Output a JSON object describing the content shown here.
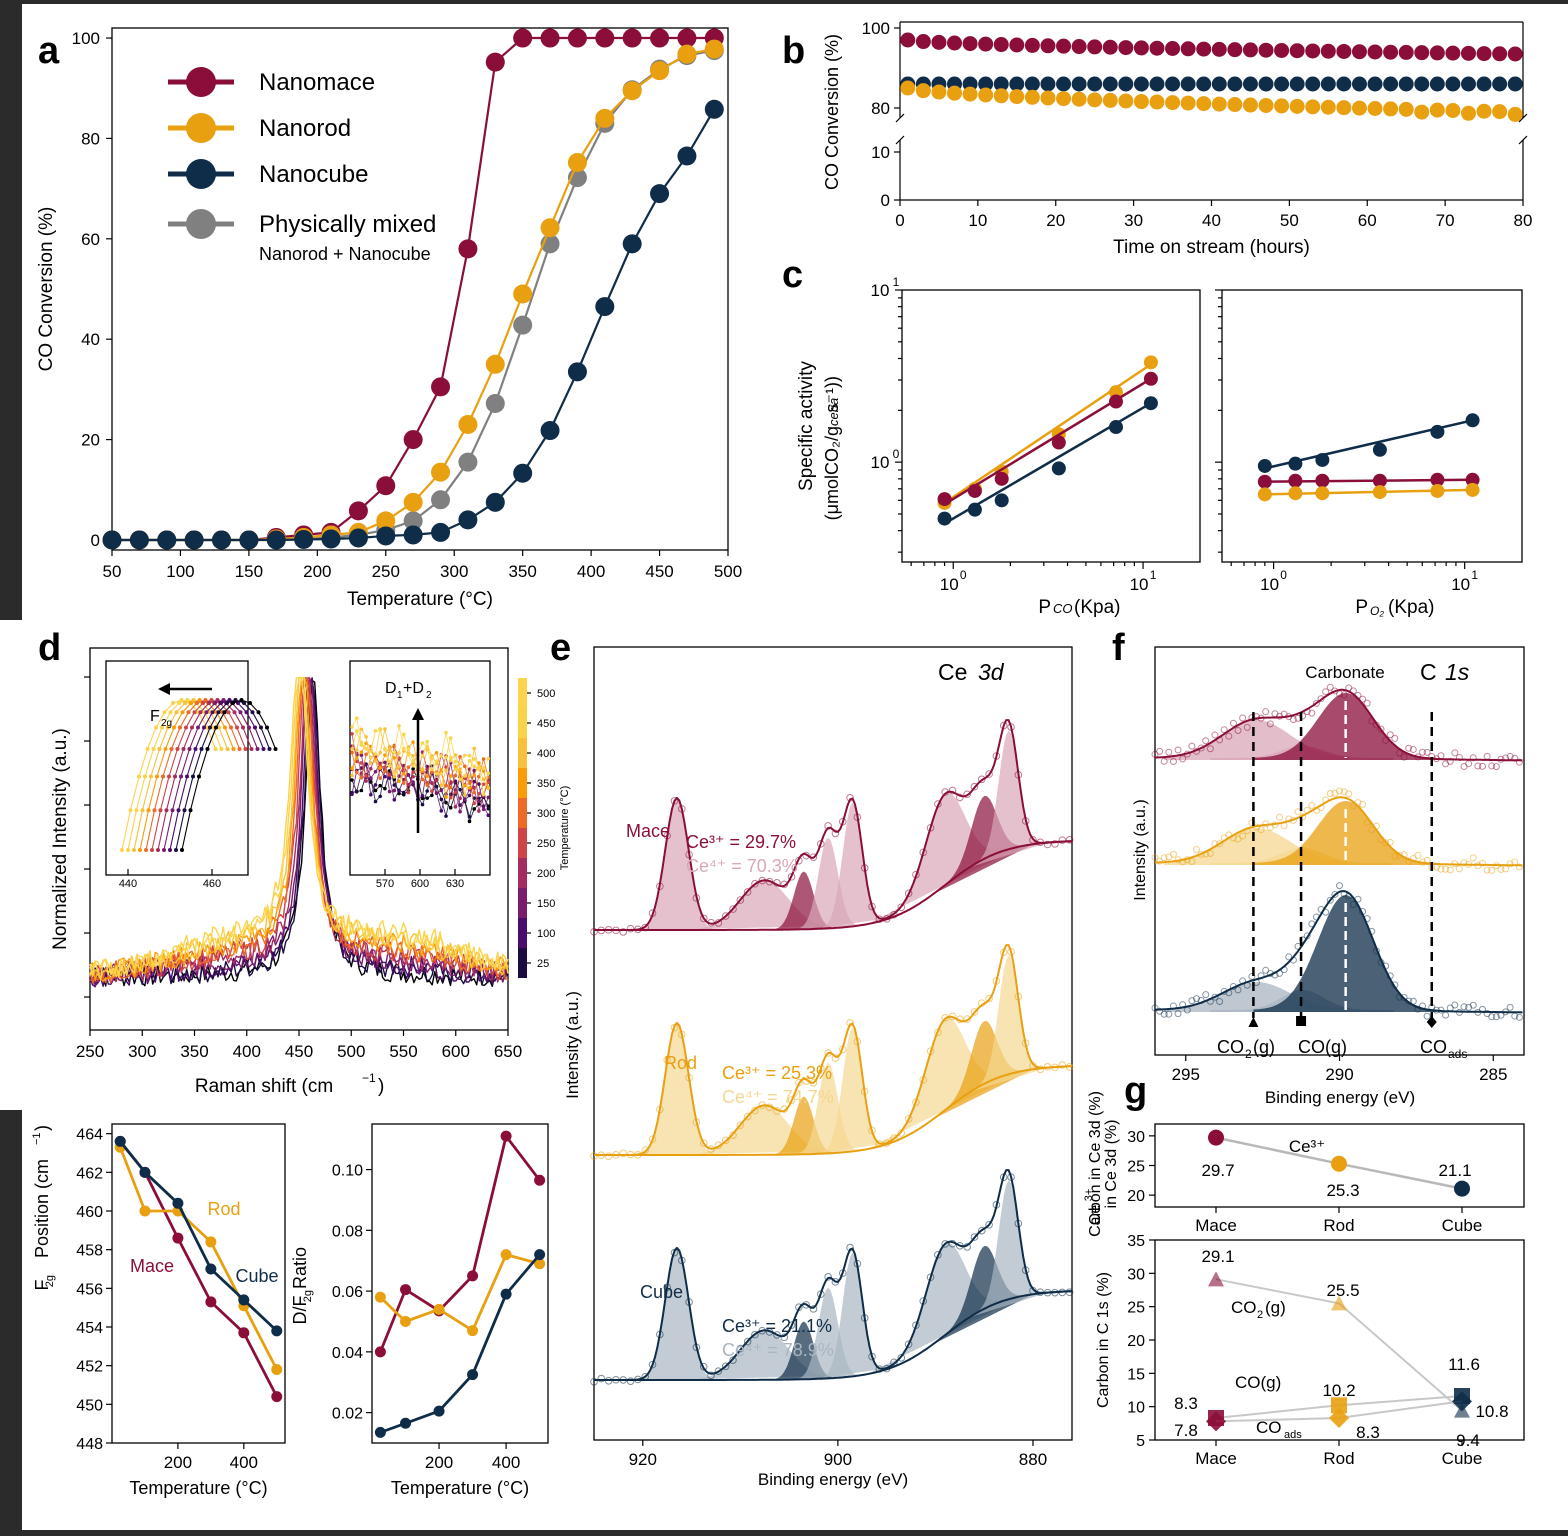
{
  "colors": {
    "mace": "#8b0e3a",
    "rod": "#e8a010",
    "cube": "#0f2d48",
    "mixed": "#808080",
    "mace_light": "#d9a7b8",
    "rod_light": "#f5d792",
    "cube_light": "#a9b6c2"
  },
  "panel_labels": [
    "a",
    "b",
    "c",
    "d",
    "e",
    "f",
    "g"
  ],
  "chart_data": [
    {
      "id": "a",
      "type": "line",
      "xlabel": "Temperature (°C)",
      "ylabel": "CO Conversion (%)",
      "xlim": [
        50,
        500
      ],
      "ylim": [
        -2,
        102
      ],
      "xticks": [
        "50",
        "100",
        "150",
        "200",
        "250",
        "300",
        "350",
        "400",
        "450",
        "500"
      ],
      "yticks": [
        "0",
        "20",
        "40",
        "60",
        "80",
        "100"
      ],
      "legend": {
        "items": [
          "Nanomace",
          "Nanorod",
          "Nanocube",
          "Physically mixed"
        ],
        "sub": "Nanorod + Nanocube"
      },
      "x": [
        50,
        70,
        90,
        110,
        130,
        150,
        170,
        190,
        210,
        230,
        250,
        270,
        290,
        310,
        330,
        350,
        370,
        390,
        410,
        430,
        450,
        470,
        490
      ],
      "series": [
        {
          "name": "Nanomace",
          "key": "mace",
          "values": [
            0,
            0,
            0,
            0,
            0,
            0,
            0.5,
            1,
            1.5,
            5.8,
            10.8,
            20,
            30.5,
            58,
            95.2,
            100,
            100,
            100,
            100,
            100,
            100,
            100,
            100
          ]
        },
        {
          "name": "Physically mixed",
          "key": "mixed",
          "values": [
            0,
            0,
            0,
            0,
            0,
            0,
            0.1,
            0.2,
            0.5,
            1,
            2,
            3.8,
            8,
            15.5,
            27.2,
            42.8,
            59,
            72.2,
            83,
            89.7,
            93.8,
            96.5,
            97.5
          ]
        },
        {
          "name": "Nanorod",
          "key": "rod",
          "values": [
            0,
            0,
            0,
            0,
            0,
            0,
            0.2,
            0.5,
            1,
            1.5,
            3.8,
            7.5,
            13.5,
            23,
            35,
            49,
            62.2,
            75.2,
            84,
            89.5,
            93.5,
            96.8,
            97.8
          ]
        },
        {
          "name": "Nanocube",
          "key": "cube",
          "values": [
            0,
            0,
            0,
            0,
            0,
            0,
            0,
            0.1,
            0.2,
            0.4,
            0.8,
            1,
            1.5,
            4,
            7.5,
            13.3,
            21.8,
            33.5,
            46.5,
            59,
            69,
            76.5,
            85.8
          ]
        }
      ]
    },
    {
      "id": "b",
      "type": "scatter",
      "xlabel": "Time on stream (hours)",
      "ylabel": "CO Conversion (%)",
      "xlim": [
        0,
        80
      ],
      "xticks": [
        "0",
        "10",
        "20",
        "30",
        "40",
        "50",
        "60",
        "70",
        "80"
      ],
      "yticks_top": [
        "80",
        "100"
      ],
      "yticks_bottom": [
        "0",
        "10"
      ],
      "series": [
        {
          "name": "Mace",
          "key": "mace",
          "start": 97,
          "end": 93.5
        },
        {
          "name": "Cube",
          "key": "cube",
          "start": 86,
          "end": 86
        },
        {
          "name": "Rod",
          "key": "rod",
          "start": 85,
          "end": 79
        }
      ]
    },
    {
      "id": "c1",
      "type": "scatter",
      "xlabel": "P_CO (Kpa)",
      "ylabel": "Specific activity (μmolCO2/gceria s−1)",
      "scale": "log",
      "xticks": [
        "10",
        "10"
      ],
      "yticks": [
        "10",
        "10"
      ],
      "x": [
        0.9,
        1.3,
        1.8,
        3.6,
        7.2,
        11
      ],
      "series": [
        {
          "key": "rod",
          "values": [
            0.58,
            0.7,
            0.88,
            1.45,
            2.55,
            3.8
          ],
          "fit": [
            0.58,
            3.7
          ]
        },
        {
          "key": "mace",
          "values": [
            0.61,
            0.68,
            0.8,
            1.3,
            2.25,
            3.05
          ],
          "fit": [
            0.57,
            3.05
          ]
        },
        {
          "key": "cube",
          "values": [
            0.47,
            0.53,
            0.6,
            0.92,
            1.6,
            2.2
          ],
          "fit": [
            0.44,
            2.2
          ]
        }
      ]
    },
    {
      "id": "c2",
      "type": "scatter",
      "xlabel": "P_O2 (Kpa)",
      "scale": "log",
      "x": [
        0.9,
        1.3,
        1.8,
        3.6,
        7.2,
        11
      ],
      "series": [
        {
          "key": "cube",
          "values": [
            0.95,
            0.98,
            1.03,
            1.18,
            1.5,
            1.75
          ],
          "fit": [
            0.92,
            1.75
          ]
        },
        {
          "key": "mace",
          "values": [
            0.77,
            0.78,
            0.78,
            0.78,
            0.79,
            0.79
          ],
          "fit": [
            0.77,
            0.79
          ]
        },
        {
          "key": "rod",
          "values": [
            0.65,
            0.66,
            0.66,
            0.67,
            0.68,
            0.69
          ],
          "fit": [
            0.65,
            0.69
          ]
        }
      ]
    },
    {
      "id": "d",
      "type": "line",
      "xlabel": "Raman shift (cm−1)",
      "ylabel": "Normalized Intensity (a.u.)",
      "xlim": [
        250,
        650
      ],
      "xticks": [
        "250",
        "300",
        "350",
        "400",
        "450",
        "500",
        "550",
        "600",
        "650"
      ],
      "inset1": {
        "label": "F2g",
        "xticks": [
          "440",
          "460"
        ]
      },
      "inset2": {
        "label": "D1+D2",
        "xticks": [
          "570",
          "600",
          "630"
        ]
      },
      "colorbar": {
        "label": "Temperature (°C)",
        "ticks": [
          "25",
          "100",
          "150",
          "200",
          "250",
          "300",
          "350",
          "400",
          "450",
          "500"
        ]
      }
    },
    {
      "id": "d2",
      "type": "line",
      "xlabel": "Temperature (°C)",
      "ylabel": "F2g Position (cm−1)",
      "ylim": [
        448,
        464.5
      ],
      "yticks": [
        "448",
        "450",
        "452",
        "454",
        "456",
        "458",
        "460",
        "462",
        "464"
      ],
      "xticks": [
        "200",
        "400"
      ],
      "x": [
        25,
        100,
        200,
        300,
        400,
        500
      ],
      "labels": [
        "Rod",
        "Mace",
        "Cube"
      ],
      "series": [
        {
          "name": "Mace",
          "key": "mace",
          "values": [
            463.6,
            462,
            458.6,
            455.3,
            453.7,
            450.4
          ]
        },
        {
          "name": "Rod",
          "key": "rod",
          "values": [
            463.3,
            460,
            460,
            458.4,
            455.1,
            451.8
          ]
        },
        {
          "name": "Cube",
          "key": "cube",
          "values": [
            463.6,
            462,
            460.4,
            457,
            455.4,
            453.8
          ]
        }
      ]
    },
    {
      "id": "d3",
      "type": "line",
      "xlabel": "Temperature (°C)",
      "ylabel": "D/F2g Ratio",
      "ylim": [
        0.01,
        0.115
      ],
      "yticks": [
        "0.02",
        "0.04",
        "0.06",
        "0.08",
        "0.10"
      ],
      "xticks": [
        "200",
        "400"
      ],
      "x": [
        25,
        100,
        200,
        300,
        400,
        500
      ],
      "series": [
        {
          "name": "Mace",
          "key": "mace",
          "values": [
            0.04,
            0.0605,
            0.0535,
            0.065,
            0.111,
            0.0965
          ]
        },
        {
          "name": "Rod",
          "key": "rod",
          "values": [
            0.058,
            0.05,
            0.054,
            0.047,
            0.072,
            0.069
          ]
        },
        {
          "name": "Cube",
          "key": "cube",
          "values": [
            0.0135,
            0.0165,
            0.0205,
            0.0325,
            0.059,
            0.072
          ]
        }
      ]
    },
    {
      "id": "e",
      "type": "line",
      "title": "Ce 3d",
      "xlabel": "Binding energy (eV)",
      "ylabel": "Intensity (a.u.)",
      "xticks": [
        "920",
        "900",
        "880"
      ],
      "labels": [
        {
          "sample": "Mace",
          "key": "mace",
          "ce3": "Ce³⁺ = 29.7%",
          "ce4": "Ce⁴⁺ = 70.3%"
        },
        {
          "sample": "Rod",
          "key": "rod",
          "ce3": "Ce³⁺ = 25.3%",
          "ce4": "Ce⁴⁺ = 74.7%"
        },
        {
          "sample": "Cube",
          "key": "cube",
          "ce3": "Ce³⁺ = 21.1%",
          "ce4": "Ce⁴⁺ = 78.9%"
        }
      ]
    },
    {
      "id": "f",
      "type": "line",
      "title": "C 1s",
      "xlabel": "Binding energy (eV)",
      "ylabel": "Intensity (a.u.)",
      "xticks": [
        "295",
        "290",
        "285"
      ],
      "annotation": "Carbonate",
      "markers": [
        "CO2(g)",
        "CO(g)",
        "COads"
      ]
    },
    {
      "id": "g1",
      "type": "line",
      "ylabel": "Ce3+ in Ce 3d (%)",
      "categories": [
        "Mace",
        "Rod",
        "Cube"
      ],
      "yticks": [
        "20",
        "25",
        "30"
      ],
      "series": [
        {
          "name": "Ce3+",
          "values": [
            29.7,
            25.3,
            21.1
          ]
        }
      ],
      "value_labels": [
        "29.7",
        "25.3",
        "21.1"
      ],
      "series_label": "Ce³⁺"
    },
    {
      "id": "g2",
      "type": "line",
      "ylabel": "Carbon in C 1s (%)",
      "categories": [
        "Mace",
        "Rod",
        "Cube"
      ],
      "yticks": [
        "5",
        "10",
        "15",
        "20",
        "25",
        "30",
        "35"
      ],
      "series": [
        {
          "name": "CO2(g)",
          "values": [
            29.1,
            25.5,
            9.4
          ],
          "labels": [
            "29.1",
            "25.5",
            "9.4"
          ]
        },
        {
          "name": "CO(g)",
          "values": [
            8.3,
            10.2,
            11.6
          ],
          "labels": [
            "8.3",
            "10.2",
            "11.6"
          ]
        },
        {
          "name": "COads",
          "values": [
            7.8,
            8.3,
            10.8
          ],
          "labels": [
            "7.8",
            "8.3",
            "10.8"
          ]
        }
      ]
    }
  ]
}
